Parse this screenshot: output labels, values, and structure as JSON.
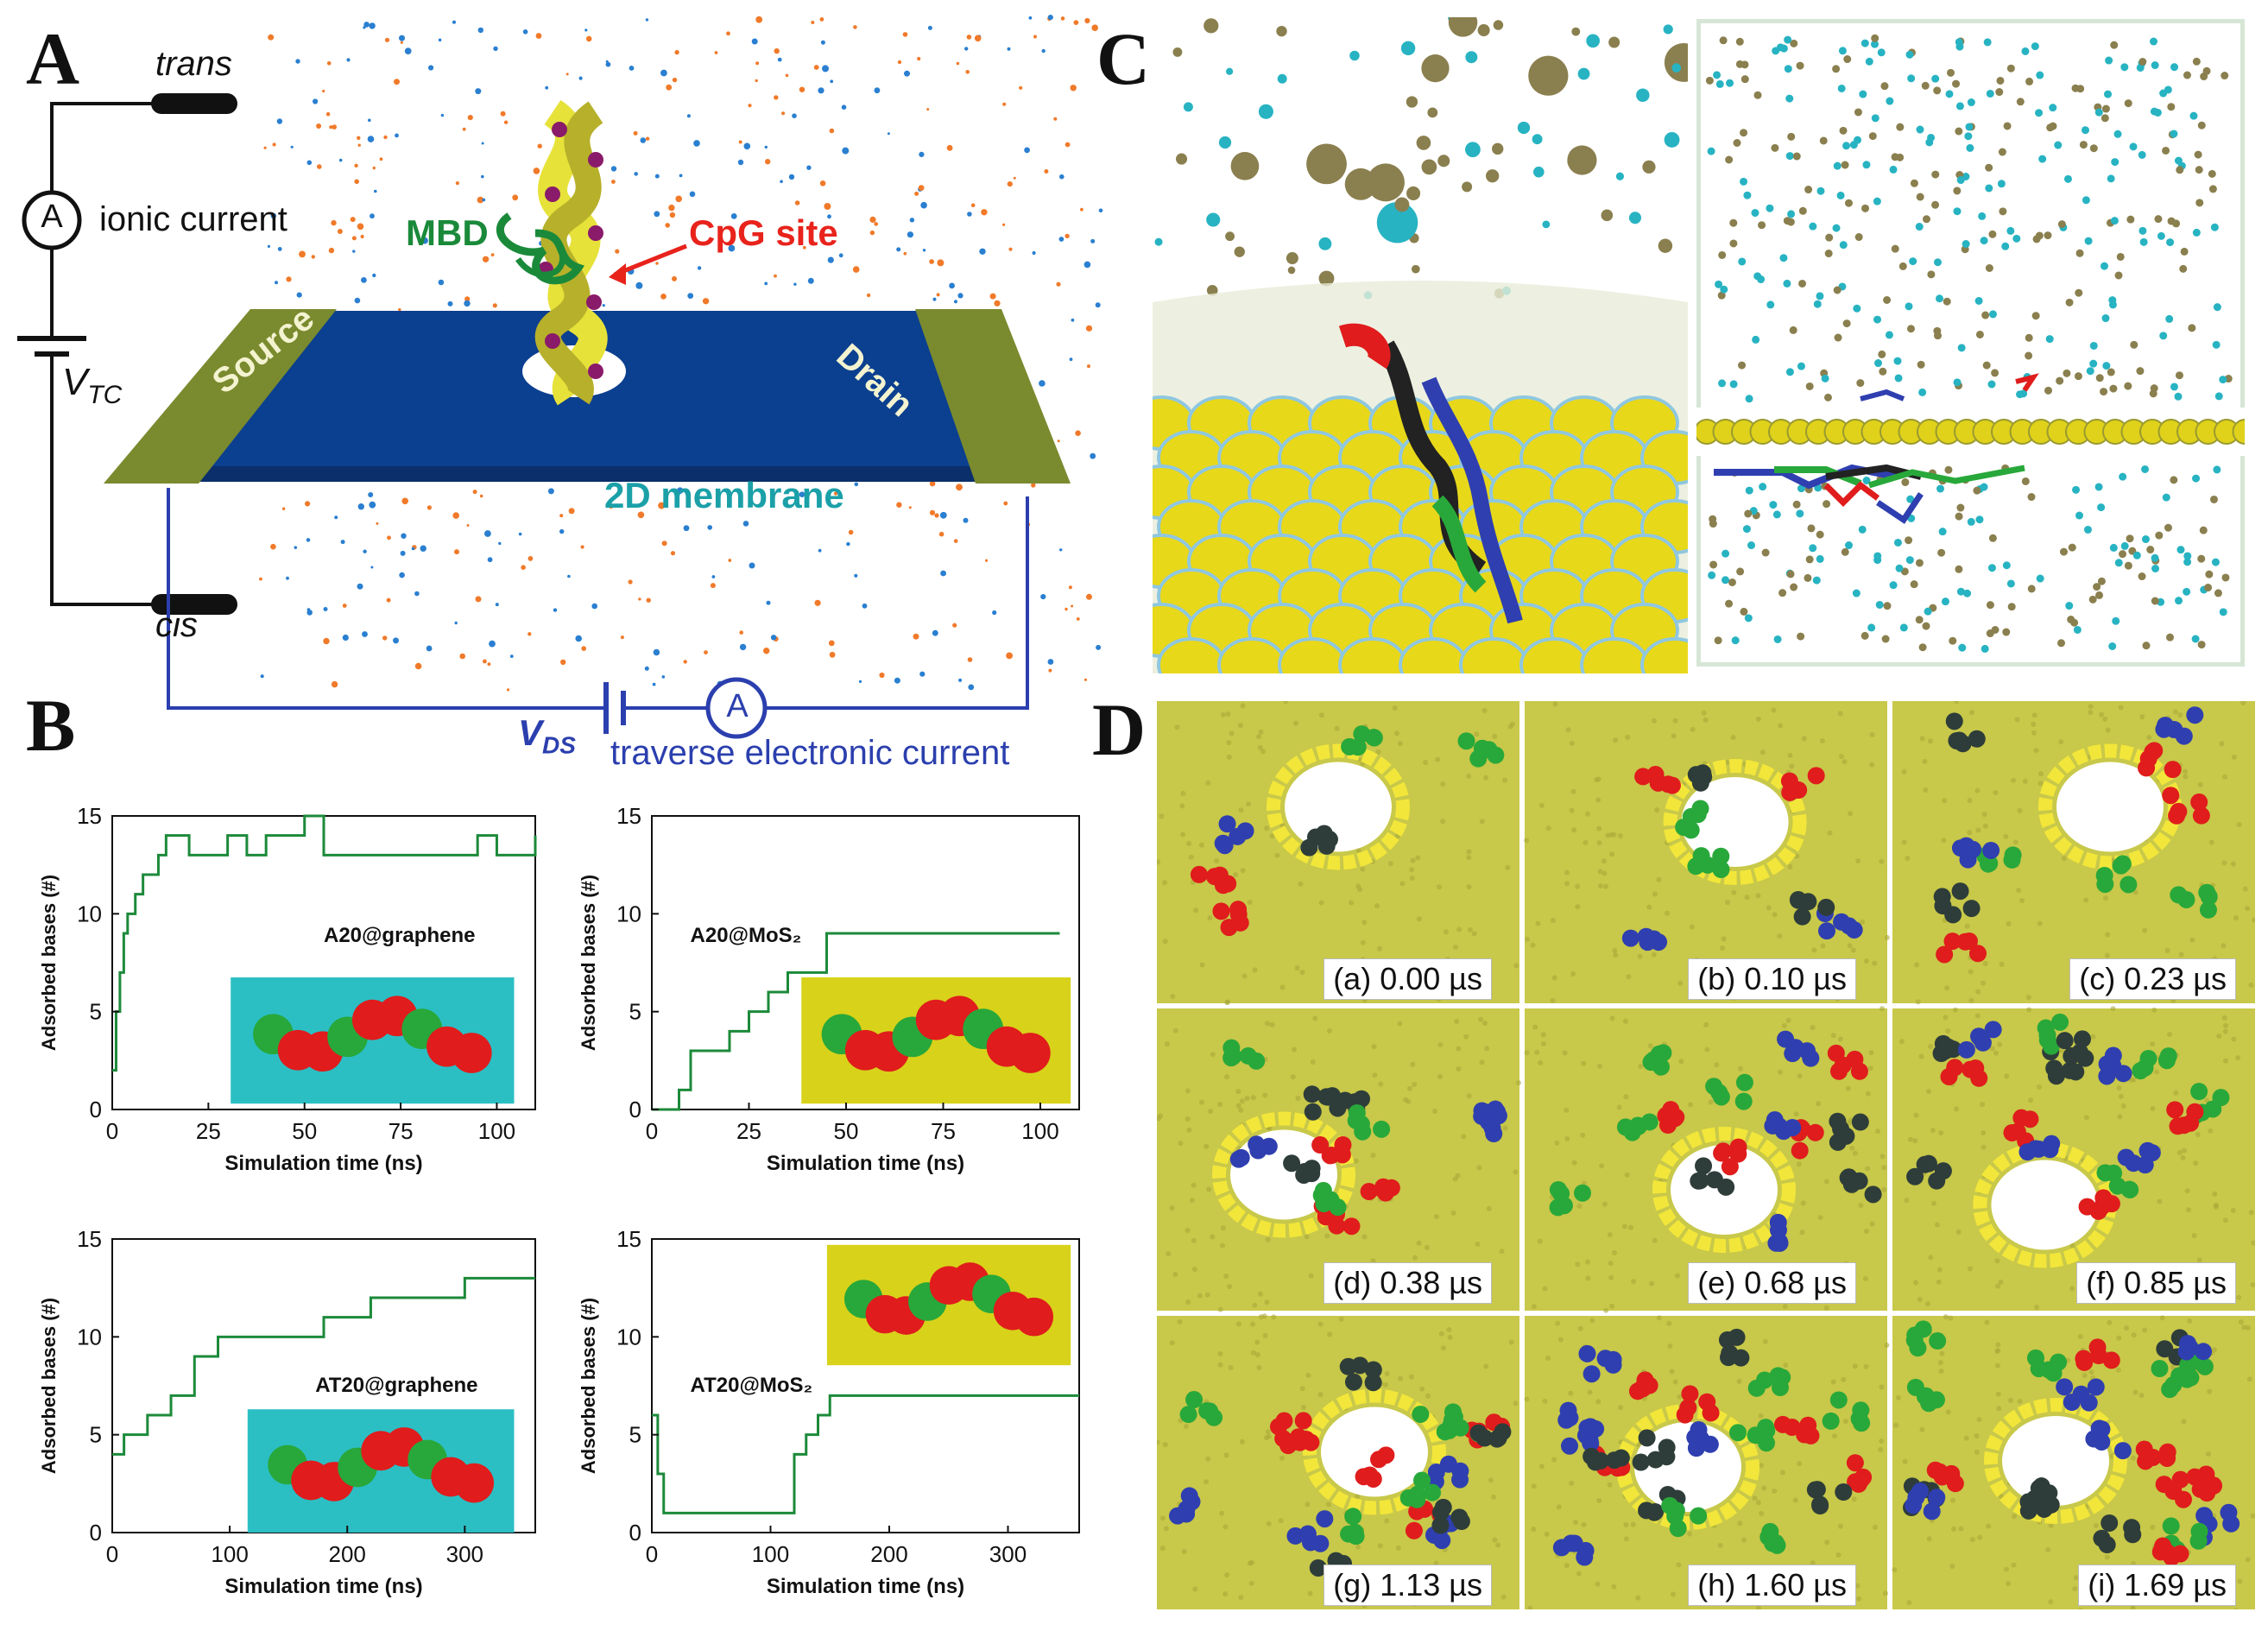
{
  "panels": {
    "a": "A",
    "b": "B",
    "c": "C",
    "d": "D"
  },
  "panel_a": {
    "trans": "trans",
    "cis": "cis",
    "ionic_current": "ionic current",
    "ammeter": "A",
    "vtc": "V",
    "vtc_sub": "TC",
    "mbd": "MBD",
    "cpg_site": "CpG site",
    "source": "Source",
    "drain": "Drain",
    "membrane": "2D membrane",
    "vds": "V",
    "vds_sub": "DS",
    "traverse": "traverse electronic current",
    "colors": {
      "membrane": "#0b3f8f",
      "electrode": "#7a8a2e",
      "mbd": "#1a8a3a",
      "cpg": "#e8231c",
      "ion_orange": "#f07a2a",
      "ion_blue": "#2a7fd0",
      "circuit_blue": "#2b3fae"
    }
  },
  "panel_b": {
    "ylabel": "Adsorbed bases (#)",
    "xlabel": "Simulation time (ns)",
    "colors": {
      "line": "#1c8a3a",
      "graphene_inset": "#2bbfc4",
      "mos2_inset": "#d8d21a"
    }
  },
  "chart_data": [
    {
      "type": "line",
      "title": "A20@graphene",
      "xlabel": "Simulation time (ns)",
      "ylabel": "Adsorbed bases (#)",
      "xlim": [
        0,
        110
      ],
      "ylim": [
        0,
        15
      ],
      "xticks": [
        0,
        25,
        50,
        75,
        100
      ],
      "yticks": [
        0,
        5,
        10,
        15
      ],
      "x": [
        0,
        1,
        2,
        3,
        4,
        5,
        6,
        8,
        10,
        12,
        14,
        20,
        25,
        30,
        35,
        40,
        45,
        50,
        55,
        60,
        65,
        70,
        75,
        80,
        85,
        90,
        95,
        100,
        105,
        110
      ],
      "y": [
        2,
        5,
        7,
        9,
        10,
        10,
        11,
        12,
        12,
        13,
        14,
        13,
        13,
        14,
        13,
        14,
        14,
        15,
        13,
        13,
        13,
        13,
        13,
        13,
        13,
        13,
        14,
        13,
        13,
        14
      ]
    },
    {
      "type": "line",
      "title": "A20@MoS₂",
      "xlabel": "Simulation time (ns)",
      "ylabel": "Adsorbed bases (#)",
      "xlim": [
        0,
        110
      ],
      "ylim": [
        0,
        15
      ],
      "xticks": [
        0,
        25,
        50,
        75,
        100
      ],
      "yticks": [
        0,
        5,
        10,
        15
      ],
      "x": [
        0,
        5,
        7,
        10,
        15,
        20,
        25,
        30,
        35,
        40,
        45,
        50,
        55,
        60,
        70,
        80,
        90,
        100,
        105
      ],
      "y": [
        0,
        0,
        1,
        3,
        3,
        4,
        5,
        6,
        7,
        7,
        9,
        9,
        9,
        9,
        9,
        9,
        9,
        9,
        9
      ]
    },
    {
      "type": "line",
      "title": "AT20@graphene",
      "xlabel": "Simulation time (ns)",
      "ylabel": "Adsorbed bases (#)",
      "xlim": [
        0,
        360
      ],
      "ylim": [
        0,
        15
      ],
      "xticks": [
        0,
        100,
        200,
        300
      ],
      "yticks": [
        0,
        5,
        10,
        15
      ],
      "x": [
        0,
        10,
        20,
        30,
        40,
        50,
        60,
        70,
        80,
        90,
        100,
        120,
        140,
        160,
        180,
        200,
        220,
        240,
        260,
        280,
        300,
        320,
        340,
        360
      ],
      "y": [
        4,
        5,
        5,
        6,
        6,
        7,
        7,
        9,
        9,
        10,
        10,
        10,
        10,
        10,
        11,
        11,
        12,
        12,
        12,
        12,
        13,
        13,
        13,
        13
      ]
    },
    {
      "type": "line",
      "title": "AT20@MoS₂",
      "xlabel": "Simulation time (ns)",
      "ylabel": "Adsorbed bases (#)",
      "xlim": [
        0,
        360
      ],
      "ylim": [
        0,
        15
      ],
      "xticks": [
        0,
        100,
        200,
        300
      ],
      "yticks": [
        0,
        5,
        10,
        15
      ],
      "x": [
        0,
        5,
        10,
        15,
        20,
        40,
        60,
        80,
        100,
        115,
        120,
        130,
        140,
        150,
        160,
        180,
        200,
        220,
        240,
        260,
        280,
        300,
        320,
        340,
        360
      ],
      "y": [
        6,
        3,
        1,
        1,
        1,
        1,
        1,
        1,
        1,
        1,
        4,
        5,
        6,
        7,
        7,
        7,
        7,
        7,
        7,
        7,
        7,
        7,
        7,
        7,
        7
      ]
    }
  ],
  "panel_d": {
    "labels": [
      "(a) 0.00 µs",
      "(b) 0.10 µs",
      "(c) 0.23 µs",
      "(d) 0.38 µs",
      "(e) 0.68 µs",
      "(f) 0.85 µs",
      "(g) 1.13 µs",
      "(h) 1.60 µs",
      "(i) 1.69 µs"
    ],
    "colors": {
      "sheet": "#c8c84a",
      "pore_ring": "#f2e63a",
      "red": "#e01c1c",
      "green": "#28a83a",
      "blue": "#2f3fb0",
      "dark": "#2e3d3a"
    }
  }
}
